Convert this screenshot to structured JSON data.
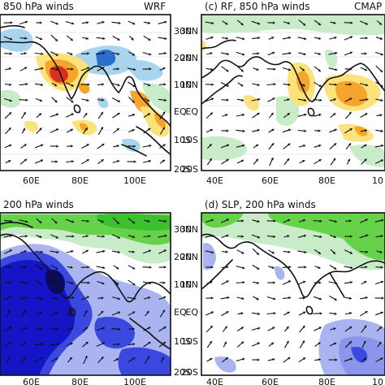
{
  "panels": {
    "a": {
      "title": "850 hPa winds",
      "model": "WRF"
    },
    "c": {
      "title": "(c) RF, 850 hPa winds",
      "model": "CMAP"
    },
    "b": {
      "title": "200 hPa winds"
    },
    "d": {
      "title": "(d) SLP, 200 hPa winds"
    }
  },
  "axes": {
    "lat_ticks": [
      "30N",
      "20N",
      "10N",
      "EQ",
      "10S",
      "20S"
    ],
    "left_lon_ticks": [
      "60E",
      "80E",
      "100E"
    ],
    "right_lon_ticks": [
      "40E",
      "60E",
      "80E",
      "10"
    ]
  },
  "colors": {
    "red": "#d7301f",
    "orange": "#f4a52a",
    "yellow": "#fbe27a",
    "light_blue": "#a8d4ee",
    "blue": "#2a6fcf",
    "pale_green": "#c8ecc8",
    "green": "#66d24a",
    "lavender": "#aab4f0",
    "indigo": "#3b48e0",
    "deep_blue": "#1515c8",
    "navy": "#0a0a60"
  }
}
